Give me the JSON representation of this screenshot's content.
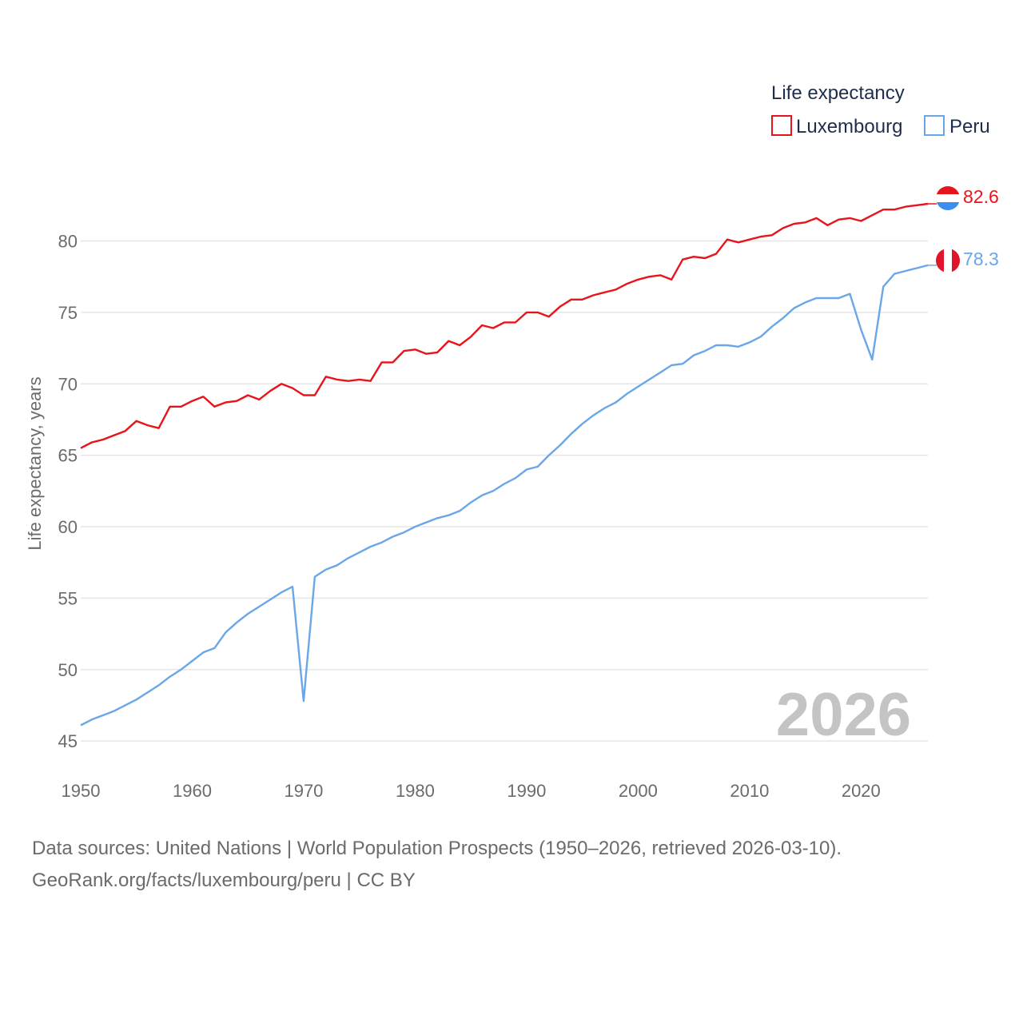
{
  "chart_data": {
    "type": "line",
    "title": "",
    "ylabel": "Life expectancy, years",
    "xlabel": "",
    "xlim": [
      1950,
      2026
    ],
    "ylim": [
      44,
      84
    ],
    "y_ticks": [
      45,
      50,
      55,
      60,
      65,
      70,
      75,
      80
    ],
    "x_ticks": [
      1950,
      1960,
      1970,
      1980,
      1990,
      2000,
      2010,
      2020
    ],
    "grid": true,
    "legend": {
      "title": "Life expectancy",
      "position": "top-right"
    },
    "watermark_year": "2026",
    "x": [
      1950,
      1951,
      1952,
      1953,
      1954,
      1955,
      1956,
      1957,
      1958,
      1959,
      1960,
      1961,
      1962,
      1963,
      1964,
      1965,
      1966,
      1967,
      1968,
      1969,
      1970,
      1971,
      1972,
      1973,
      1974,
      1975,
      1976,
      1977,
      1978,
      1979,
      1980,
      1981,
      1982,
      1983,
      1984,
      1985,
      1986,
      1987,
      1988,
      1989,
      1990,
      1991,
      1992,
      1993,
      1994,
      1995,
      1996,
      1997,
      1998,
      1999,
      2000,
      2001,
      2002,
      2003,
      2004,
      2005,
      2006,
      2007,
      2008,
      2009,
      2010,
      2011,
      2012,
      2013,
      2014,
      2015,
      2016,
      2017,
      2018,
      2019,
      2020,
      2021,
      2022,
      2023,
      2024,
      2025,
      2026
    ],
    "series": [
      {
        "name": "Luxembourg",
        "color": "#e8141c",
        "end_label": "82.6",
        "values": [
          65.5,
          65.9,
          66.1,
          66.4,
          66.7,
          67.4,
          67.1,
          66.9,
          68.4,
          68.4,
          68.8,
          69.1,
          68.4,
          68.7,
          68.8,
          69.2,
          68.9,
          69.5,
          70.0,
          69.7,
          69.2,
          69.2,
          70.5,
          70.3,
          70.2,
          70.3,
          70.2,
          71.5,
          71.5,
          72.3,
          72.4,
          72.1,
          72.2,
          73.0,
          72.7,
          73.3,
          74.1,
          73.9,
          74.3,
          74.3,
          75.0,
          75.0,
          74.7,
          75.4,
          75.9,
          75.9,
          76.2,
          76.4,
          76.6,
          77.0,
          77.3,
          77.5,
          77.6,
          77.3,
          78.7,
          78.9,
          78.8,
          79.1,
          80.1,
          79.9,
          80.1,
          80.3,
          80.4,
          80.9,
          81.2,
          81.3,
          81.6,
          81.1,
          81.5,
          81.6,
          81.4,
          81.8,
          82.2,
          82.2,
          82.4,
          82.5,
          82.6
        ]
      },
      {
        "name": "Peru",
        "color": "#6aa7e8",
        "end_label": "78.3",
        "values": [
          46.1,
          46.5,
          46.8,
          47.1,
          47.5,
          47.9,
          48.4,
          48.9,
          49.5,
          50.0,
          50.6,
          51.2,
          51.5,
          52.6,
          53.3,
          53.9,
          54.4,
          54.9,
          55.4,
          55.8,
          47.8,
          56.5,
          57.0,
          57.3,
          57.8,
          58.2,
          58.6,
          58.9,
          59.3,
          59.6,
          60.0,
          60.3,
          60.6,
          60.8,
          61.1,
          61.7,
          62.2,
          62.5,
          63.0,
          63.4,
          64.0,
          64.2,
          65.0,
          65.7,
          66.5,
          67.2,
          67.8,
          68.3,
          68.7,
          69.3,
          69.8,
          70.3,
          70.8,
          71.3,
          71.4,
          72.0,
          72.3,
          72.7,
          72.7,
          72.6,
          72.9,
          73.3,
          74.0,
          74.6,
          75.3,
          75.7,
          76.0,
          76.0,
          76.0,
          76.3,
          73.8,
          71.7,
          76.8,
          77.7,
          77.9,
          78.1,
          78.3
        ]
      }
    ]
  },
  "source": {
    "line1": "Data sources: United Nations | World Population Prospects (1950–2026, retrieved 2026-03-10).",
    "line2": "GeoRank.org/facts/luxembourg/peru | CC BY"
  }
}
